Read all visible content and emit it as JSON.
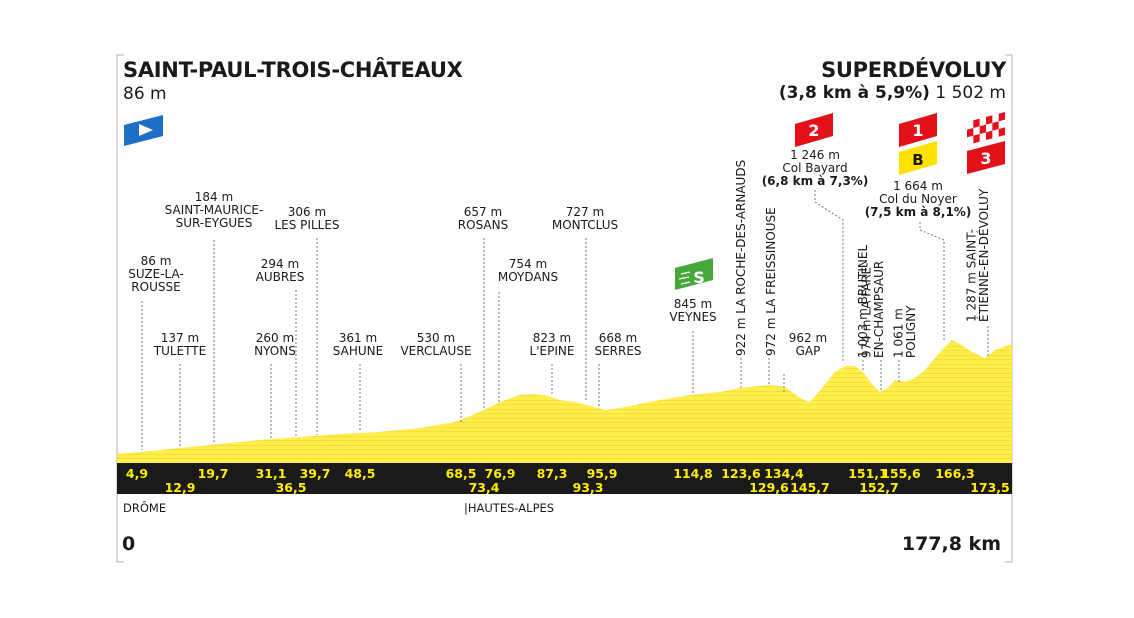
{
  "start": {
    "name": "SAINT-PAUL-TROIS-CHÂTEAUX",
    "altitude": "86 m"
  },
  "finish": {
    "name": "SUPERDÉVOLUY",
    "climb": "(3,8 km à 5,9%)",
    "altitude": "1 502 m"
  },
  "distance": {
    "start": "0",
    "end": "177,8 km"
  },
  "regions": [
    {
      "label": "DRÔME"
    },
    {
      "label": "|HAUTES-ALPES"
    }
  ],
  "km_marks": [
    {
      "label": "4,9",
      "row": 1
    },
    {
      "label": "12,9",
      "row": 2
    },
    {
      "label": "19,7",
      "row": 1
    },
    {
      "label": "31,1",
      "row": 1
    },
    {
      "label": "36,5",
      "row": 2
    },
    {
      "label": "39,7",
      "row": 1
    },
    {
      "label": "48,5",
      "row": 1
    },
    {
      "label": "68,5",
      "row": 1
    },
    {
      "label": "73,4",
      "row": 2
    },
    {
      "label": "76,9",
      "row": 1
    },
    {
      "label": "87,3",
      "row": 1
    },
    {
      "label": "93,3",
      "row": 2
    },
    {
      "label": "95,9",
      "row": 1
    },
    {
      "label": "114,8",
      "row": 1
    },
    {
      "label": "123,6",
      "row": 1
    },
    {
      "label": "129,6",
      "row": 2
    },
    {
      "label": "134,4",
      "row": 1
    },
    {
      "label": "145,7",
      "row": 2
    },
    {
      "label": "151,1",
      "row": 1
    },
    {
      "label": "152,7",
      "row": 2
    },
    {
      "label": "155,6",
      "row": 1
    },
    {
      "label": "166,3",
      "row": 1
    },
    {
      "label": "173,5",
      "row": 2
    }
  ],
  "places": [
    {
      "lines": [
        "86 m",
        "SUZE-LA-",
        "ROUSSE"
      ]
    },
    {
      "lines": [
        "137 m",
        "TULETTE"
      ]
    },
    {
      "lines": [
        "184 m",
        "SAINT-MAURICE-",
        "SUR-EYGUES"
      ]
    },
    {
      "lines": [
        "260 m",
        "NYONS"
      ]
    },
    {
      "lines": [
        "294 m",
        "AUBRES"
      ]
    },
    {
      "lines": [
        "306 m",
        "LES PILLES"
      ]
    },
    {
      "lines": [
        "361 m",
        "SAHUNE"
      ]
    },
    {
      "lines": [
        "530 m",
        "VERCLAUSE"
      ]
    },
    {
      "lines": [
        "657 m",
        "ROSANS"
      ]
    },
    {
      "lines": [
        "754 m",
        "MOYDANS"
      ]
    },
    {
      "lines": [
        "727 m",
        "MONTCLUS"
      ]
    },
    {
      "lines": [
        "823 m",
        "L'EPINE"
      ]
    },
    {
      "lines": [
        "668 m",
        "SERRES"
      ]
    },
    {
      "lines": [
        "845 m",
        "VEYNES"
      ]
    },
    {
      "lines": [
        "922 m LA ROCHE-DES-ARNAUDS"
      ]
    },
    {
      "lines": [
        "972 m LA FREISSINOUSE"
      ]
    },
    {
      "lines": [
        "962 m",
        "GAP"
      ]
    },
    {
      "lines": [
        "1 246 m",
        "Col Bayard",
        "(6,8 km à 7,3%)"
      ]
    },
    {
      "lines": [
        "1 003 m BRUTINEL"
      ]
    },
    {
      "lines": [
        "974 m LA FARE-",
        "EN-CHAMPSAUR"
      ]
    },
    {
      "lines": [
        "1 061 m",
        "POLIGNY"
      ]
    },
    {
      "lines": [
        "1 664 m",
        "Col du Noyer",
        "(7,5 km à 8,1%)"
      ]
    },
    {
      "lines": [
        "1 287 m SAINT-",
        "ÉTIENNE-EN-DÉVOLUY"
      ]
    }
  ],
  "icons": {
    "start": "start-flag-icon",
    "sprint": {
      "name": "sprint-icon",
      "letter": "S"
    },
    "col_bayard": {
      "name": "climb-category-icon",
      "category": "2"
    },
    "col_noyer": {
      "name": "climb-category-icon",
      "category": "1"
    },
    "bonus": {
      "name": "bonus-icon",
      "letter": "B"
    },
    "finish": {
      "name": "finish-flag-icon"
    },
    "finish_category": {
      "name": "climb-category-icon",
      "category": "3"
    }
  },
  "colors": {
    "profile_fill": "#ffed4a",
    "profile_stripe": "#e8d030",
    "km_band": "#1a1a1a",
    "km_text": "#ffed00",
    "start_flag": "#1c6fc4",
    "sprint": "#46a83a",
    "climb_red": "#e3101a",
    "bonus_yellow": "#ffe100",
    "leader_line": "#777777"
  }
}
